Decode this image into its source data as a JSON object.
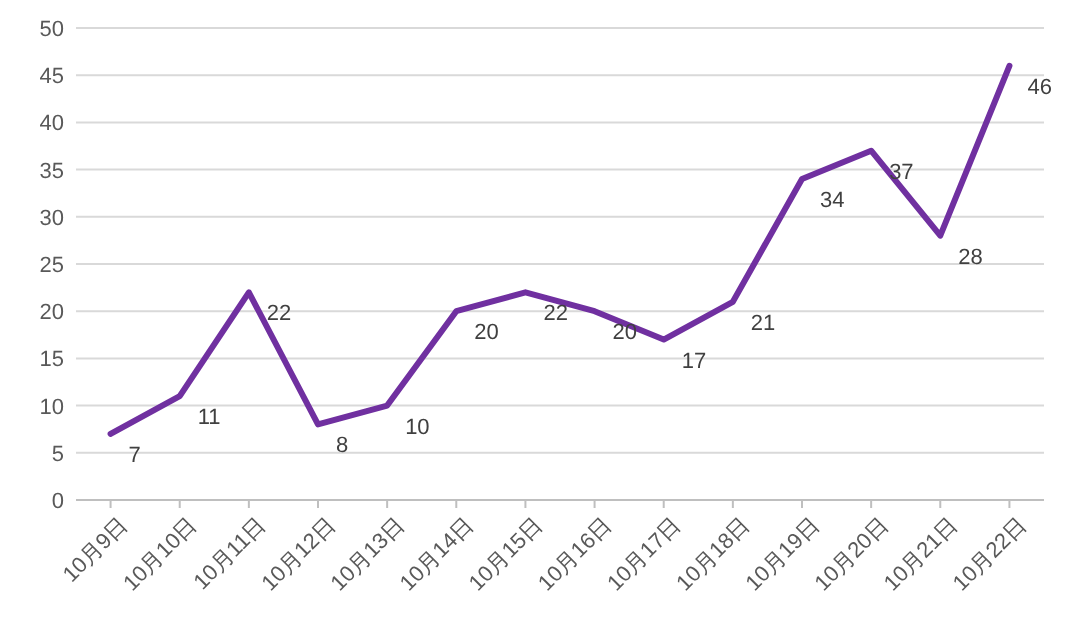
{
  "chart_data": {
    "type": "line",
    "categories": [
      "10月9日",
      "10月10日",
      "10月11日",
      "10月12日",
      "10月13日",
      "10月14日",
      "10月15日",
      "10月16日",
      "10月17日",
      "10月18日",
      "10月19日",
      "10月20日",
      "10月21日",
      "10月22日"
    ],
    "series": [
      {
        "color": "#7030a0",
        "values": [
          7,
          11,
          22,
          8,
          10,
          20,
          22,
          20,
          17,
          21,
          34,
          37,
          28,
          46
        ]
      }
    ],
    "ylim": [
      0,
      50
    ],
    "yticks": [
      0,
      5,
      10,
      15,
      20,
      25,
      30,
      35,
      40,
      45,
      50
    ],
    "grid": "y",
    "data_labels": true
  }
}
